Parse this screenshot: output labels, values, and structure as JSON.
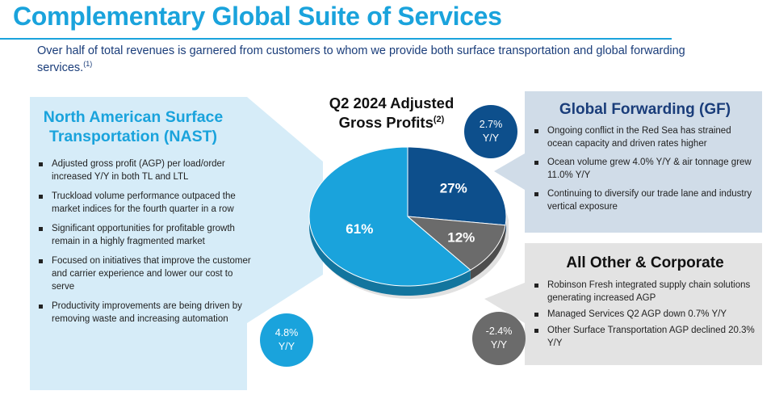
{
  "title": "Complementary Global Suite of Services",
  "subtitle": "Over half of total revenues is garnered from customers to whom we provide both surface transportation and global forwarding services.",
  "subtitle_footnote": "(1)",
  "colors": {
    "accent": "#1aa3dc",
    "navy": "#0d4f8c",
    "gray": "#6b6b6b",
    "nast_panel": "#d6ecf8",
    "gf_panel": "#d0dce8",
    "other_panel": "#e3e3e3"
  },
  "nast": {
    "title_line1": "North American Surface",
    "title_line2": "Transportation (NAST)",
    "bullets": [
      "Adjusted gross profit (AGP) per load/order increased Y/Y in both TL and LTL",
      "Truckload volume performance outpaced the market indices for the fourth quarter in a row",
      "Significant opportunities for profitable growth remain in a highly fragmented market",
      "Focused on initiatives that improve the customer and carrier experience and lower our cost to serve",
      "Productivity improvements are being driven by removing waste and increasing automation"
    ],
    "growth": "4.8%",
    "growth_label": "Y/Y"
  },
  "gf": {
    "title": "Global Forwarding (GF)",
    "bullets": [
      "Ongoing conflict in the Red Sea has strained ocean capacity and driven rates higher",
      "Ocean volume grew 4.0% Y/Y & air tonnage grew 11.0% Y/Y",
      "Continuing to diversify our trade lane and industry vertical exposure"
    ],
    "growth": "2.7%",
    "growth_label": "Y/Y"
  },
  "other": {
    "title": "All Other & Corporate",
    "bullets": [
      "Robinson Fresh integrated supply chain solutions generating increased AGP",
      "Managed Services Q2 AGP down 0.7% Y/Y",
      "Other Surface Transportation AGP declined 20.3% Y/Y"
    ],
    "growth": "-2.4%",
    "growth_label": "Y/Y"
  },
  "chart_data": {
    "type": "pie",
    "title_line1": "Q2 2024 Adjusted",
    "title_line2": "Gross Profits",
    "title_footnote": "(2)",
    "slices": [
      {
        "name": "Global Forwarding (GF)",
        "value": 27,
        "label": "27%",
        "color": "#0d4f8c"
      },
      {
        "name": "All Other & Corporate",
        "value": 12,
        "label": "12%",
        "color": "#6b6b6b"
      },
      {
        "name": "North American Surface Transportation (NAST)",
        "value": 61,
        "label": "61%",
        "color": "#1aa3dc"
      }
    ]
  }
}
